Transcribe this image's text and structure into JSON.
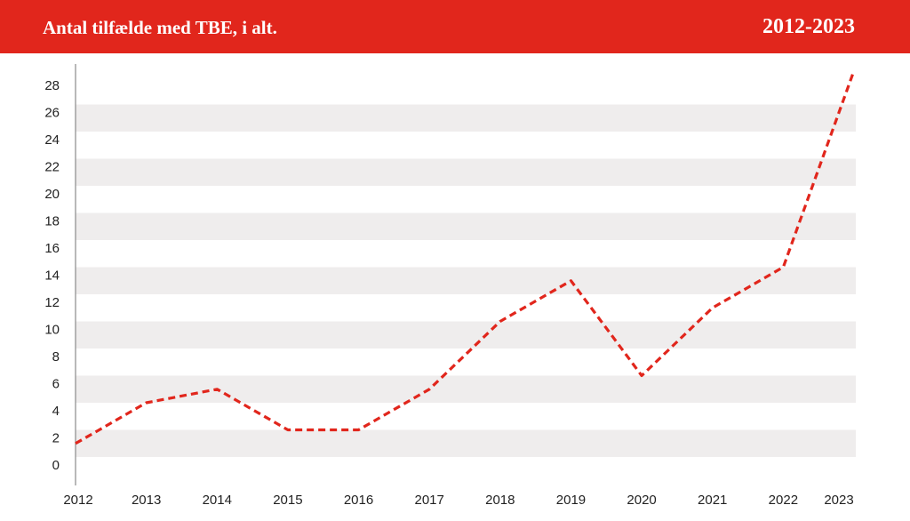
{
  "header": {
    "title": "Antal tilfælde med TBE, i alt.",
    "period": "2012-2023"
  },
  "colors": {
    "header_background": "#e1261c",
    "line": "#e1261c",
    "band": "#efeded"
  },
  "chart_data": {
    "type": "line",
    "title": "Antal tilfælde med TBE, i alt.",
    "subtitle": "2012-2023",
    "xlabel": "",
    "ylabel": "",
    "categories": [
      "2012",
      "2013",
      "2014",
      "2015",
      "2016",
      "2017",
      "2018",
      "2019",
      "2020",
      "2021",
      "2022",
      "2023"
    ],
    "values": [
      1,
      4,
      5,
      2,
      2,
      5,
      10,
      13,
      6,
      11,
      14,
      28.5
    ],
    "ylim": [
      0,
      28
    ],
    "yticks": [
      0,
      2,
      4,
      6,
      8,
      10,
      12,
      14,
      16,
      18,
      20,
      22,
      24,
      26,
      28
    ],
    "line_style": "dashed",
    "grid": "alternating horizontal bands",
    "legend": "none"
  }
}
